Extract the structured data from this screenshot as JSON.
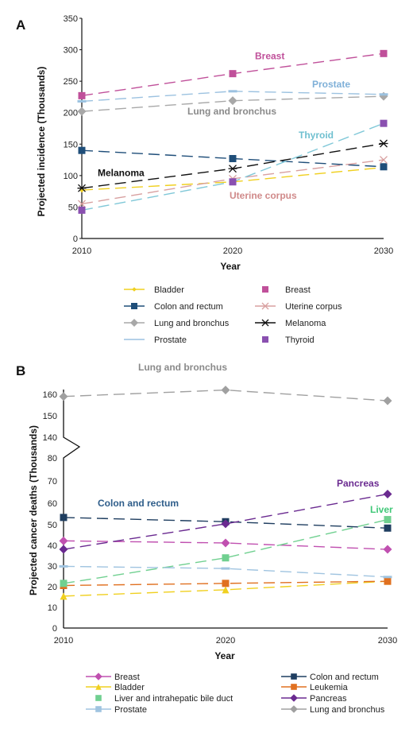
{
  "chart_data": [
    {
      "panel_label": "A",
      "type": "line",
      "xlabel": "Year",
      "ylabel": "Projected incidence (Thousands)",
      "x": [
        2010,
        2020,
        2030
      ],
      "x_tick_labels": [
        "2010",
        "2020",
        "2030"
      ],
      "ylim": [
        0,
        350
      ],
      "y_tick_labels": [
        "0",
        "50",
        "100",
        "150",
        "200",
        "250",
        "300",
        "350"
      ],
      "grid": false,
      "legend_placement": "bottom",
      "series": [
        {
          "name": "Bladder",
          "values": [
            77,
            90,
            113
          ],
          "color": "#f0d020",
          "marker": "diamond-small",
          "label_color": ""
        },
        {
          "name": "Breast",
          "values": [
            227,
            262,
            294
          ],
          "color": "#c0509a",
          "marker": "square",
          "label": "Breast",
          "label_color": "#c0509a"
        },
        {
          "name": "Colon and rectum",
          "values": [
            140,
            127,
            114
          ],
          "color": "#1f4e79",
          "marker": "square",
          "label_color": ""
        },
        {
          "name": "Uterine corpus",
          "values": [
            55,
            95,
            125
          ],
          "color": "#d8a0a0",
          "marker": "x",
          "label": "Uterine corpus",
          "label_color": "#d08a8a"
        },
        {
          "name": "Lung and bronchus",
          "values": [
            202,
            219,
            226
          ],
          "color": "#a8a8a8",
          "marker": "diamond",
          "label": "Lung and bronchus",
          "label_color": "#8a8a8a"
        },
        {
          "name": "Melanoma",
          "values": [
            80,
            111,
            151
          ],
          "color": "#111111",
          "marker": "asterisk",
          "label": "Melanoma",
          "label_color": "#111111"
        },
        {
          "name": "Prostate",
          "values": [
            218,
            234,
            229
          ],
          "color": "#9cc2e0",
          "marker": "dash",
          "label": "Prostate",
          "label_color": "#7fb0d8"
        },
        {
          "name": "Thyroid",
          "values": [
            45,
            90,
            183
          ],
          "color": "#80c8d8",
          "marker": "square-purple",
          "label": "Thyroid",
          "label_color": "#70c0d0"
        }
      ],
      "legend": [
        "Bladder",
        "Breast",
        "Colon and rectum",
        "Uterine corpus",
        "Lung and bronchus",
        "Melanoma",
        "Prostate",
        "Thyroid"
      ]
    },
    {
      "panel_label": "B",
      "type": "line",
      "xlabel": "Year",
      "ylabel": "Projected cancer deaths (Thousands)",
      "x": [
        2010,
        2020,
        2030
      ],
      "x_tick_labels": [
        "2010",
        "2020",
        "2030"
      ],
      "ylim": [
        0,
        160
      ],
      "axis_break": [
        80,
        140
      ],
      "y_tick_labels": [
        "0",
        "10",
        "20",
        "30",
        "40",
        "50",
        "60",
        "70",
        "80",
        "140",
        "150",
        "160"
      ],
      "grid": false,
      "legend_placement": "bottom",
      "series": [
        {
          "name": "Breast",
          "values": [
            41,
            40,
            37
          ],
          "color": "#c050b0",
          "marker": "diamond",
          "label_color": ""
        },
        {
          "name": "Colon and rectum",
          "values": [
            52,
            50,
            47
          ],
          "color": "#1f3e60",
          "marker": "square",
          "label": "Colon and rectum",
          "label_color": "#2e5d8a"
        },
        {
          "name": "Bladder",
          "values": [
            15,
            18,
            22
          ],
          "color": "#f0d020",
          "marker": "triangle",
          "label_color": ""
        },
        {
          "name": "Leukemia",
          "values": [
            20,
            21,
            22
          ],
          "color": "#e07020",
          "marker": "square",
          "label_color": ""
        },
        {
          "name": "Liver and intrahepatic bile duct",
          "values": [
            21,
            33,
            51
          ],
          "color": "#70d090",
          "marker": "square",
          "label": "Liver",
          "label_color": "#40c878"
        },
        {
          "name": "Pancreas",
          "values": [
            37,
            49,
            63
          ],
          "color": "#6a2a90",
          "marker": "diamond",
          "label": "Pancreas",
          "label_color": "#6a2a90"
        },
        {
          "name": "Prostate",
          "values": [
            29,
            28,
            24
          ],
          "color": "#a0c4e0",
          "marker": "dash",
          "label_color": ""
        },
        {
          "name": "Lung and bronchus",
          "values": [
            159,
            162,
            157
          ],
          "color": "#a0a0a0",
          "marker": "diamond",
          "label": "Lung and bronchus",
          "label_color": "#8a8a8a"
        }
      ],
      "legend": [
        "Breast",
        "Colon and rectum",
        "Bladder",
        "Leukemia",
        "Liver and intrahepatic bile duct",
        "Pancreas",
        "Prostate",
        "Lung and bronchus"
      ]
    }
  ]
}
